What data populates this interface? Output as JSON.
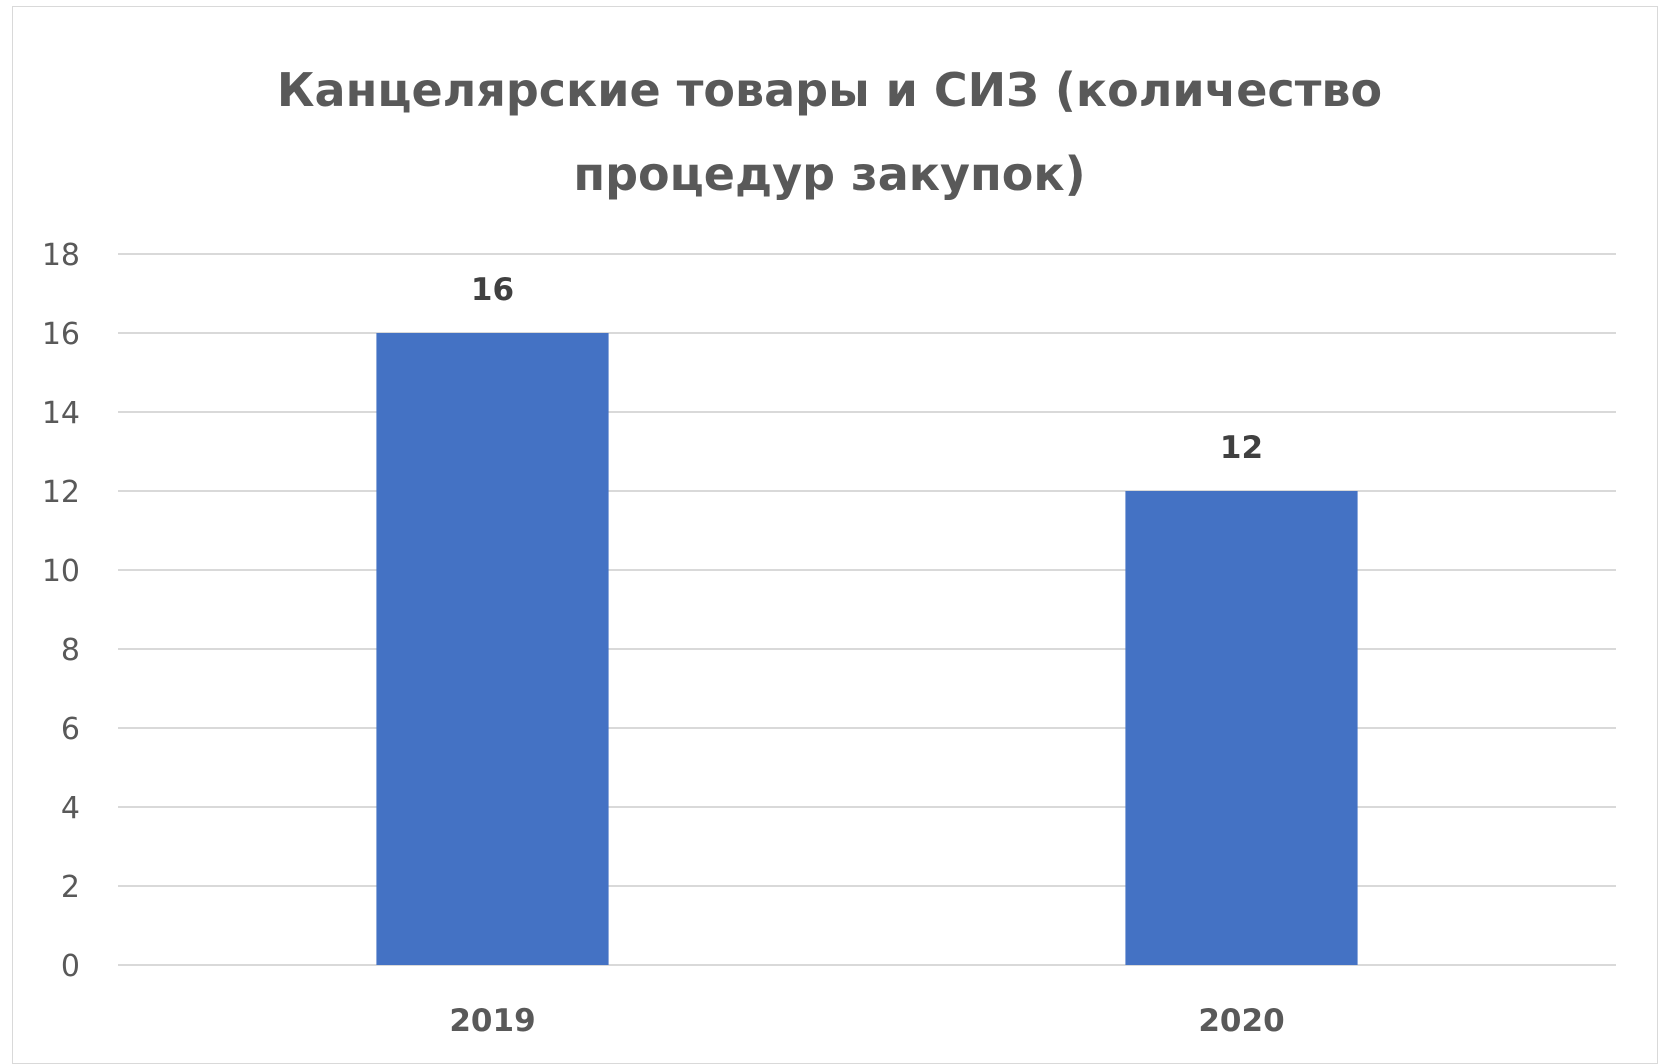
{
  "chart_data": {
    "type": "bar",
    "title": "Канцелярские товары и СИЗ (количество\nпроцедур закупок)",
    "categories": [
      "2019",
      "2020"
    ],
    "values": [
      16,
      12
    ],
    "data_labels": [
      "16",
      "12"
    ],
    "y_ticks": [
      "0",
      "2",
      "4",
      "6",
      "8",
      "10",
      "12",
      "14",
      "16",
      "18"
    ],
    "ylim": [
      0,
      18
    ],
    "xlabel": "",
    "ylabel": "",
    "grid": true,
    "legend": "none",
    "colors": {
      "bar": "#4472C4",
      "grid": "#d9d9d9",
      "text": "#595959",
      "data_label": "#404040"
    }
  }
}
